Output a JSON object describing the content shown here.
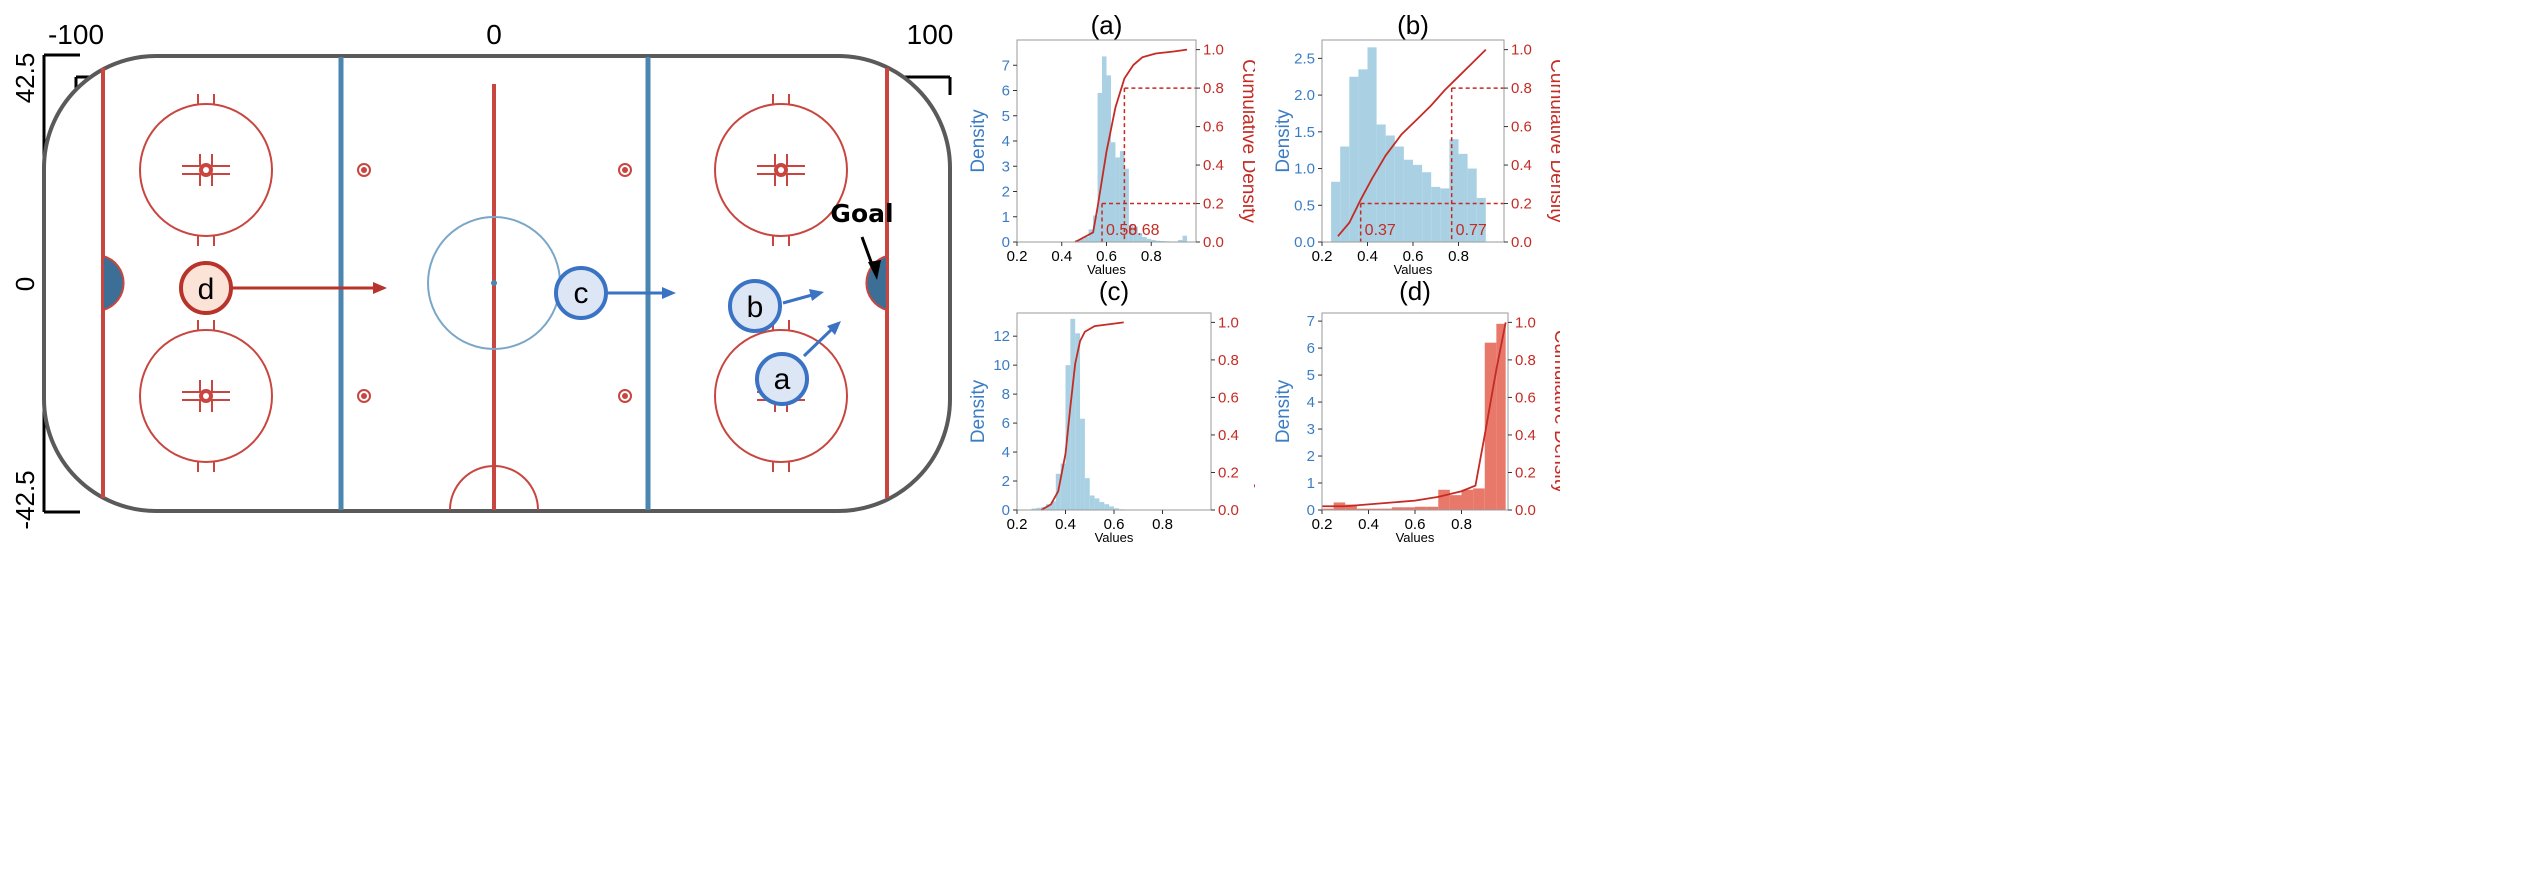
{
  "rink": {
    "x_ticks": [
      "-100",
      "0",
      "100"
    ],
    "y_ticks": [
      "42.5",
      "0",
      "-42.5"
    ],
    "goal_label": "Goal",
    "players": [
      {
        "id": "a",
        "label": "a",
        "team": "blue"
      },
      {
        "id": "b",
        "label": "b",
        "team": "blue"
      },
      {
        "id": "c",
        "label": "c",
        "team": "blue"
      },
      {
        "id": "d",
        "label": "d",
        "team": "red"
      }
    ],
    "colors": {
      "rink_border": "#5a5a5a",
      "red_line": "#c8463f",
      "blue_line": "#4a86b0",
      "blue_player_fill": "#dce6f4",
      "blue_player_stroke": "#3a72c4",
      "red_player_fill": "#fbe3d8",
      "red_player_stroke": "#b8332a",
      "crease": "#3d6f96"
    }
  },
  "chart_data": [
    {
      "id": "a",
      "type": "bar",
      "title": "(a)",
      "xlabel": "Values",
      "ylabel": "Density",
      "y2label": "Cumulative Density",
      "xlim": [
        0.2,
        1.0
      ],
      "ylim": [
        0,
        8
      ],
      "y2lim": [
        0,
        1.05
      ],
      "xticks": [
        "0.2",
        "0.4",
        "0.6",
        "0.8"
      ],
      "yticks": [
        "0",
        "1",
        "2",
        "3",
        "4",
        "5",
        "6",
        "7"
      ],
      "y2ticks": [
        "0.0",
        "0.2",
        "0.4",
        "0.6",
        "0.8",
        "1.0"
      ],
      "bin_edges": [
        0.46,
        0.48,
        0.5,
        0.52,
        0.54,
        0.56,
        0.58,
        0.6,
        0.62,
        0.64,
        0.66,
        0.68,
        0.7,
        0.72,
        0.74,
        0.76,
        0.78,
        0.8,
        0.82,
        0.84,
        0.86,
        0.88,
        0.9,
        0.92,
        0.94,
        0.96
      ],
      "densities": [
        0.08,
        0.12,
        0.2,
        0.5,
        1.05,
        5.9,
        7.35,
        6.6,
        3.95,
        3.35,
        3.6,
        2.9,
        0.65,
        0.6,
        0.35,
        0.2,
        0.12,
        0.08,
        0.05,
        0.04,
        0.03,
        0.02,
        0.02,
        0.08,
        0.25
      ],
      "cdf": {
        "x": [
          0.46,
          0.54,
          0.56,
          0.6,
          0.64,
          0.68,
          0.72,
          0.76,
          0.82,
          0.9,
          0.96
        ],
        "y": [
          0.0,
          0.05,
          0.18,
          0.47,
          0.7,
          0.85,
          0.92,
          0.96,
          0.98,
          0.99,
          1.0
        ]
      },
      "reference_levels": [
        0.2,
        0.8
      ],
      "percentiles": [
        0.58,
        0.68
      ],
      "percentile_labels": [
        "0.58",
        "0.68"
      ],
      "colors": {
        "bars": "#a9d1e3",
        "cdf": "#c42b24"
      }
    },
    {
      "id": "b",
      "type": "bar",
      "title": "(b)",
      "xlabel": "Values",
      "ylabel": "Density",
      "y2label": "Cumulative Density",
      "xlim": [
        0.2,
        1.0
      ],
      "ylim": [
        0,
        2.75
      ],
      "y2lim": [
        0,
        1.05
      ],
      "xticks": [
        "0.2",
        "0.4",
        "0.6",
        "0.8"
      ],
      "yticks": [
        "0.0",
        "0.5",
        "1.0",
        "1.5",
        "2.0",
        "2.5"
      ],
      "y2ticks": [
        "0.0",
        "0.2",
        "0.4",
        "0.6",
        "0.8",
        "1.0"
      ],
      "bin_edges": [
        0.24,
        0.28,
        0.32,
        0.36,
        0.4,
        0.44,
        0.48,
        0.52,
        0.56,
        0.6,
        0.64,
        0.68,
        0.72,
        0.76,
        0.8,
        0.84,
        0.88,
        0.92
      ],
      "densities": [
        0.82,
        1.3,
        2.25,
        2.35,
        2.65,
        1.6,
        1.45,
        1.3,
        1.12,
        1.05,
        0.95,
        0.75,
        0.73,
        1.4,
        1.2,
        1.0,
        0.6
      ],
      "cdf": {
        "x": [
          0.27,
          0.32,
          0.37,
          0.42,
          0.48,
          0.55,
          0.62,
          0.68,
          0.74,
          0.8,
          0.86,
          0.92
        ],
        "y": [
          0.03,
          0.1,
          0.22,
          0.33,
          0.45,
          0.56,
          0.64,
          0.71,
          0.79,
          0.86,
          0.93,
          1.0
        ]
      },
      "reference_levels": [
        0.2,
        0.8
      ],
      "percentiles": [
        0.37,
        0.77
      ],
      "percentile_labels": [
        "0.37",
        "0.77"
      ],
      "colors": {
        "bars": "#a9d1e3",
        "cdf": "#c42b24"
      }
    },
    {
      "id": "c",
      "type": "bar",
      "title": "(c)",
      "xlabel": "Values",
      "ylabel": "Density",
      "y2label": "Cumulative Density",
      "xlim": [
        0.2,
        1.0
      ],
      "ylim": [
        0,
        13.6
      ],
      "y2lim": [
        0,
        1.05
      ],
      "xticks": [
        "0.2",
        "0.4",
        "0.6",
        "0.8"
      ],
      "yticks": [
        "0",
        "2",
        "4",
        "6",
        "8",
        "10",
        "12"
      ],
      "y2ticks": [
        "0.0",
        "0.2",
        "0.4",
        "0.6",
        "0.8",
        "1.0"
      ],
      "bin_edges": [
        0.26,
        0.28,
        0.3,
        0.32,
        0.34,
        0.36,
        0.38,
        0.4,
        0.42,
        0.44,
        0.46,
        0.48,
        0.5,
        0.52,
        0.54,
        0.56,
        0.58,
        0.6,
        0.62,
        0.64
      ],
      "densities": [
        0.1,
        0.15,
        0.2,
        0.4,
        0.6,
        2.5,
        3.2,
        10.0,
        13.2,
        12.2,
        6.3,
        2.2,
        1.0,
        0.8,
        0.55,
        0.4,
        0.25,
        0.12,
        0.05
      ],
      "cdf": {
        "x": [
          0.3,
          0.34,
          0.37,
          0.4,
          0.42,
          0.44,
          0.46,
          0.48,
          0.52,
          0.58,
          0.64
        ],
        "y": [
          0.0,
          0.03,
          0.1,
          0.3,
          0.55,
          0.78,
          0.9,
          0.95,
          0.98,
          0.99,
          1.0
        ]
      },
      "colors": {
        "bars": "#a9d1e3",
        "cdf": "#c42b24"
      }
    },
    {
      "id": "d",
      "type": "bar",
      "title": "(d)",
      "xlabel": "Values",
      "ylabel": "Density",
      "y2label": "Cumulative Density",
      "xlim": [
        0.2,
        1.0
      ],
      "ylim": [
        0,
        7.3
      ],
      "y2lim": [
        0,
        1.05
      ],
      "xticks": [
        "0.2",
        "0.4",
        "0.6",
        "0.8"
      ],
      "yticks": [
        "0",
        "1",
        "2",
        "3",
        "4",
        "5",
        "6",
        "7"
      ],
      "y2ticks": [
        "0.0",
        "0.2",
        "0.4",
        "0.6",
        "0.8",
        "1.0"
      ],
      "bin_edges": [
        0.2,
        0.25,
        0.3,
        0.35,
        0.4,
        0.45,
        0.5,
        0.55,
        0.6,
        0.65,
        0.7,
        0.75,
        0.8,
        0.85,
        0.9,
        0.95,
        0.99
      ],
      "densities": [
        0.05,
        0.28,
        0.2,
        0.05,
        0.05,
        0.05,
        0.1,
        0.1,
        0.12,
        0.12,
        0.75,
        0.55,
        0.75,
        0.8,
        6.2,
        6.9
      ],
      "cdf": {
        "x": [
          0.2,
          0.3,
          0.4,
          0.5,
          0.6,
          0.7,
          0.8,
          0.86,
          0.9,
          0.95,
          0.99
        ],
        "y": [
          0.02,
          0.02,
          0.03,
          0.04,
          0.05,
          0.07,
          0.1,
          0.13,
          0.4,
          0.75,
          1.0
        ]
      },
      "colors": {
        "bars": "#e8786a",
        "cdf": "#c42b24"
      }
    }
  ]
}
